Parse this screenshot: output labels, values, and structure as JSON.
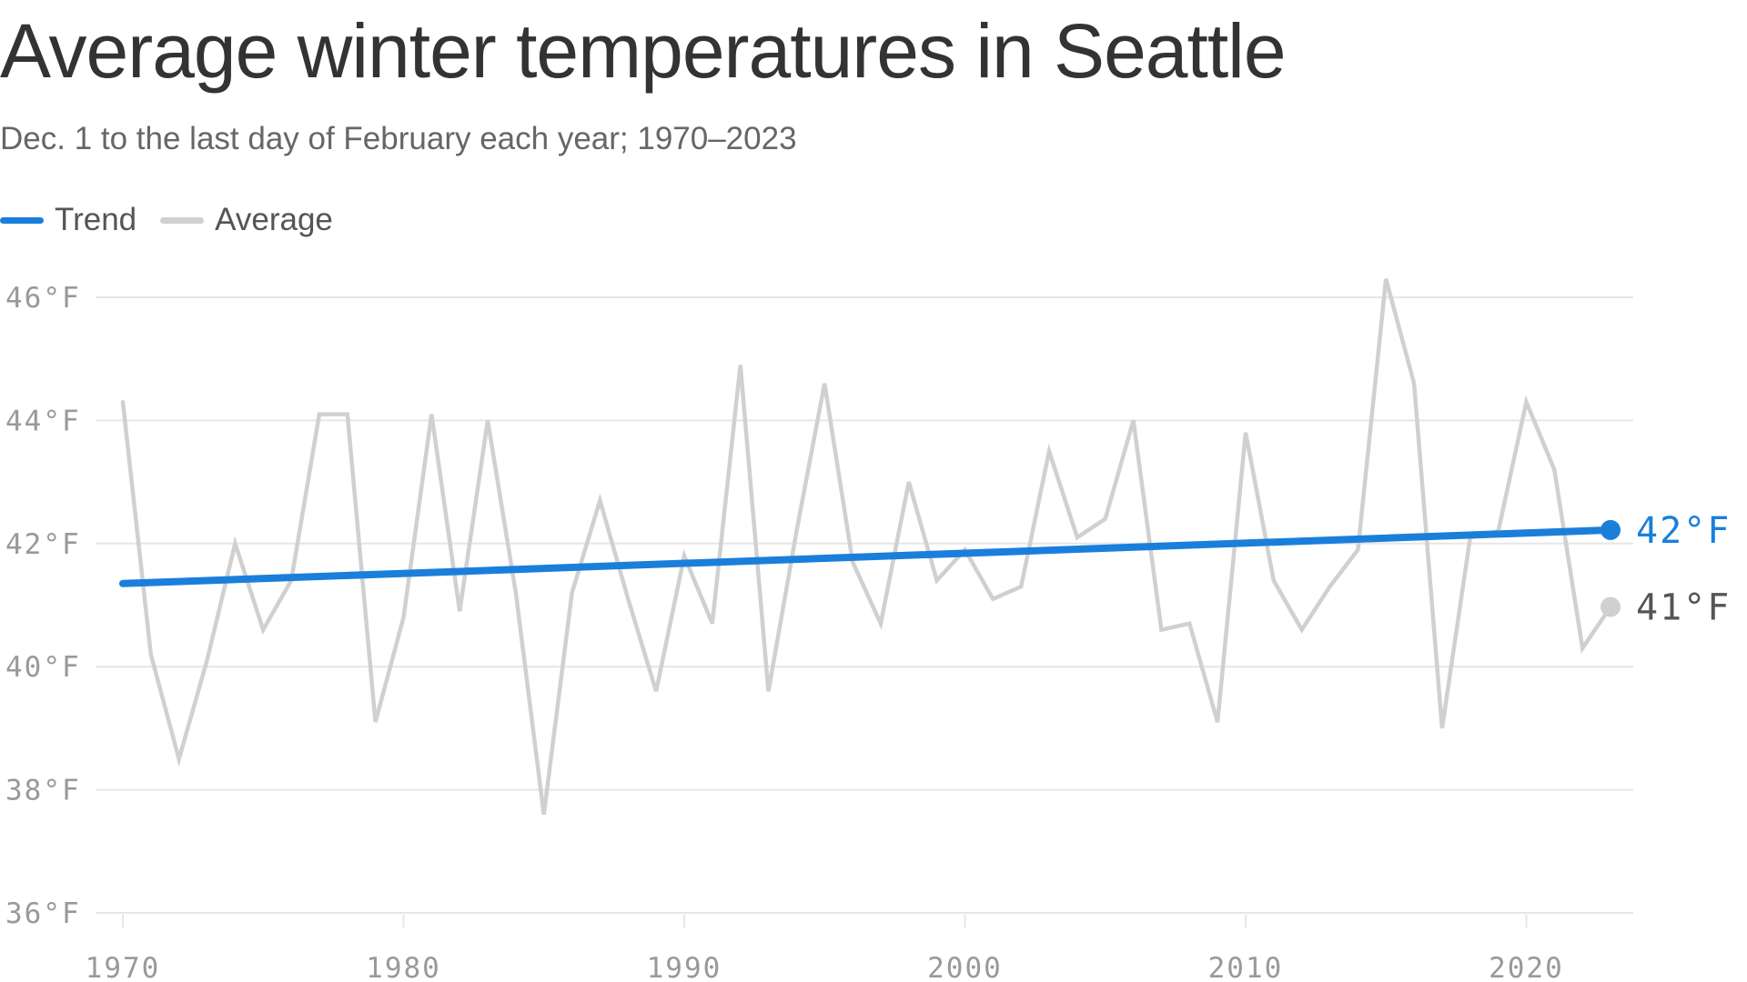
{
  "chart_data": {
    "type": "line",
    "title": "Average winter temperatures in Seattle",
    "subtitle": "Dec. 1 to the last day of February each year; 1970–2023",
    "xlabel": "",
    "ylabel": "",
    "ylim": [
      36,
      46
    ],
    "xlim": [
      1970,
      2023
    ],
    "y_ticks": [
      {
        "value": 46,
        "label": "46°F"
      },
      {
        "value": 44,
        "label": "44°F"
      },
      {
        "value": 42,
        "label": "42°F"
      },
      {
        "value": 40,
        "label": "40°F"
      },
      {
        "value": 38,
        "label": "38°F"
      },
      {
        "value": 36,
        "label": "36°F"
      }
    ],
    "x_ticks": [
      {
        "value": 1970,
        "label": "1970"
      },
      {
        "value": 1980,
        "label": "1980"
      },
      {
        "value": 1990,
        "label": "1990"
      },
      {
        "value": 2000,
        "label": "2000"
      },
      {
        "value": 2010,
        "label": "2010"
      },
      {
        "value": 2020,
        "label": "2020"
      }
    ],
    "grid": true,
    "legend_position": "top-left",
    "series": [
      {
        "name": "Trend",
        "color": "#1a7fdb",
        "x": [
          1970,
          2023
        ],
        "values": [
          41.35,
          42.22
        ],
        "end_label": "42°F"
      },
      {
        "name": "Average",
        "color": "#d0d0d0",
        "x": [
          1970,
          1971,
          1972,
          1973,
          1974,
          1975,
          1976,
          1977,
          1978,
          1979,
          1980,
          1981,
          1982,
          1983,
          1984,
          1985,
          1986,
          1987,
          1988,
          1989,
          1990,
          1991,
          1992,
          1993,
          1994,
          1995,
          1996,
          1997,
          1998,
          1999,
          2000,
          2001,
          2002,
          2003,
          2004,
          2005,
          2006,
          2007,
          2008,
          2009,
          2010,
          2011,
          2012,
          2013,
          2014,
          2015,
          2016,
          2017,
          2018,
          2019,
          2020,
          2021,
          2022,
          2023
        ],
        "values": [
          44.3,
          40.2,
          38.5,
          40.1,
          42.0,
          40.6,
          41.4,
          44.1,
          44.1,
          39.1,
          40.8,
          44.1,
          40.9,
          44.0,
          41.2,
          37.6,
          41.2,
          42.7,
          41.1,
          39.6,
          41.8,
          40.7,
          44.9,
          39.6,
          42.2,
          44.6,
          41.7,
          40.7,
          43.0,
          41.4,
          41.9,
          41.1,
          41.3,
          43.5,
          42.1,
          42.4,
          44.0,
          40.6,
          40.7,
          39.1,
          43.8,
          41.4,
          40.6,
          41.3,
          41.9,
          46.3,
          44.6,
          39.0,
          42.1,
          42.2,
          44.3,
          43.2,
          40.3,
          40.97
        ],
        "end_label": "41°F"
      }
    ]
  },
  "colors": {
    "trend": "#1a7fdb",
    "average": "#d0d0d0",
    "grid": "#e6e6e6",
    "tick_text": "#999999",
    "title_text": "#333333"
  }
}
